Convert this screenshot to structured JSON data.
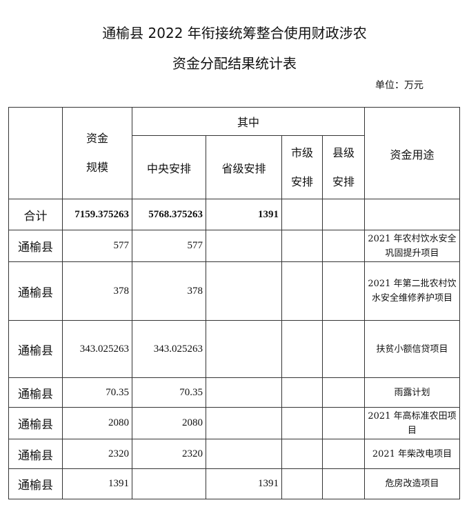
{
  "title_line1": "通榆县 2022 年衔接统筹整合使用财政涉农",
  "title_line2": "资金分配结果统计表",
  "unit": "单位：万元",
  "headers": {
    "scale": "资金\n规模",
    "of_which": "其中",
    "central": "中央安排",
    "provincial": "省级安排",
    "city": "市级\n安排",
    "county": "县级\n安排",
    "use": "资金用途"
  },
  "total": {
    "label": "合计",
    "scale": "7159.375263",
    "central": "5768.375263",
    "provincial": "1391"
  },
  "rows": [
    {
      "name": "通榆县",
      "scale": "577",
      "central": "577",
      "provincial": "",
      "use": "2021 年农村饮水安全巩固提升项目"
    },
    {
      "name": "通榆县",
      "scale": "378",
      "central": "378",
      "provincial": "",
      "use": "2021 年第二批农村饮水安全维修养护项目"
    },
    {
      "name": "通榆县",
      "scale": "343.025263",
      "central": "343.025263",
      "provincial": "",
      "use": "扶贫小额信贷项目"
    },
    {
      "name": "通榆县",
      "scale": "70.35",
      "central": "70.35",
      "provincial": "",
      "use": "雨露计划"
    },
    {
      "name": "通榆县",
      "scale": "2080",
      "central": "2080",
      "provincial": "",
      "use": "2021 年高标准农田项目"
    },
    {
      "name": "通榆县",
      "scale": "2320",
      "central": "2320",
      "provincial": "",
      "use": "2021 年柴改电项目"
    },
    {
      "name": "通榆县",
      "scale": "1391",
      "central": "",
      "provincial": "1391",
      "use": "危房改造项目"
    }
  ]
}
